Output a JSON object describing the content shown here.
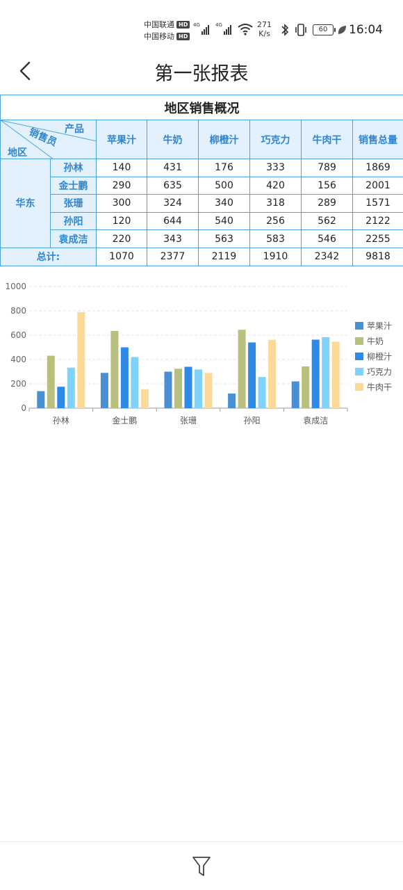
{
  "status_bar": {
    "carrier1": "中国联通",
    "carrier2": "中国移动",
    "hd": "HD",
    "network": "4G",
    "net_speed_value": "271",
    "net_speed_unit": "K/s",
    "battery": "60",
    "time": "16:04"
  },
  "header": {
    "title": "第一张报表",
    "back_icon": "chevron-left-icon"
  },
  "report": {
    "title": "地区销售概况",
    "corner": {
      "product": "产品",
      "salesperson": "销售员",
      "region": "地区"
    },
    "columns": [
      "苹果汁",
      "牛奶",
      "柳橙汁",
      "巧克力",
      "牛肉干",
      "销售总量"
    ],
    "region": "华东",
    "rows": [
      {
        "name": "孙林",
        "values": [
          "140",
          "431",
          "176",
          "333",
          "789",
          "1869"
        ]
      },
      {
        "name": "金士鹏",
        "values": [
          "290",
          "635",
          "500",
          "420",
          "156",
          "2001"
        ]
      },
      {
        "name": "张珊",
        "values": [
          "300",
          "324",
          "340",
          "318",
          "289",
          "1571"
        ]
      },
      {
        "name": "孙阳",
        "values": [
          "120",
          "644",
          "540",
          "256",
          "562",
          "2122"
        ]
      },
      {
        "name": "袁成洁",
        "values": [
          "220",
          "343",
          "563",
          "583",
          "546",
          "2255"
        ]
      }
    ],
    "total_label": "总计:",
    "totals": [
      "1070",
      "2377",
      "2119",
      "1910",
      "2342",
      "9818"
    ]
  },
  "chart_data": {
    "type": "bar",
    "categories": [
      "孙林",
      "金士鹏",
      "张珊",
      "孙阳",
      "袁成洁"
    ],
    "series": [
      {
        "name": "苹果汁",
        "color": "#4a8fd4",
        "values": [
          140,
          290,
          300,
          120,
          220
        ]
      },
      {
        "name": "牛奶",
        "color": "#b9bf7f",
        "values": [
          431,
          635,
          324,
          644,
          343
        ]
      },
      {
        "name": "柳橙汁",
        "color": "#2e8ae6",
        "values": [
          176,
          500,
          340,
          540,
          563
        ]
      },
      {
        "name": "巧克力",
        "color": "#7fd3fb",
        "values": [
          333,
          420,
          318,
          256,
          583
        ]
      },
      {
        "name": "牛肉干",
        "color": "#fbd998",
        "values": [
          789,
          156,
          289,
          562,
          546
        ]
      }
    ],
    "y_ticks": [
      "0",
      "200",
      "400",
      "600",
      "800",
      "1000"
    ],
    "ylim": [
      0,
      1000
    ],
    "grid": true,
    "legend": "right"
  },
  "bottom_bar": {
    "filter_icon": "filter-icon"
  }
}
